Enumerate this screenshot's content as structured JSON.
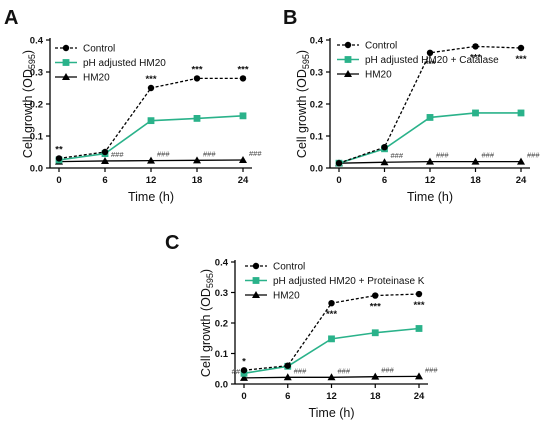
{
  "chart_data": [
    {
      "panel": "A",
      "type": "line",
      "xlabel": "Time (h)",
      "ylabel": "Cell growth (OD595)",
      "ylabel_main": "Cell growth (OD",
      "ylabel_sub": "595",
      "ylabel_close": ")",
      "x": [
        0,
        6,
        12,
        18,
        24
      ],
      "x_ticks": [
        "0",
        "6",
        "12",
        "18",
        "24"
      ],
      "ylim": [
        0,
        0.4
      ],
      "y_ticks": [
        "0.0",
        "0.1",
        "0.2",
        "0.3",
        "0.4"
      ],
      "y_tick_values": [
        0,
        0.1,
        0.2,
        0.3,
        0.4
      ],
      "series": [
        {
          "name": "Control",
          "values": [
            0.03,
            0.05,
            0.25,
            0.28,
            0.28
          ],
          "marker": "circle",
          "style": "dashed",
          "color": "#000000"
        },
        {
          "name": "pH adjusted HM20",
          "values": [
            0.025,
            0.045,
            0.148,
            0.155,
            0.163
          ],
          "marker": "square",
          "style": "solid",
          "color": "#2ab28a"
        },
        {
          "name": "HM20",
          "values": [
            0.02,
            0.022,
            0.023,
            0.024,
            0.025
          ],
          "marker": "triangle",
          "style": "solid",
          "color": "#000000"
        }
      ],
      "star_annotations": [
        {
          "x": 0,
          "text": "**",
          "value": 0.03,
          "position": "above"
        },
        {
          "x": 12,
          "text": "***",
          "value": 0.25,
          "position": "above"
        },
        {
          "x": 18,
          "text": "***",
          "value": 0.28,
          "position": "above"
        },
        {
          "x": 24,
          "text": "***",
          "value": 0.28,
          "position": "above"
        }
      ],
      "hash_annotations": [
        {
          "x": 6,
          "text": "###"
        },
        {
          "x": 12,
          "text": "###"
        },
        {
          "x": 18,
          "text": "###"
        },
        {
          "x": 24,
          "text": "###"
        }
      ]
    },
    {
      "panel": "B",
      "type": "line",
      "xlabel": "Time (h)",
      "ylabel": "Cell growth (OD595)",
      "ylabel_main": "Cell growth (OD",
      "ylabel_sub": "595",
      "ylabel_close": ")",
      "x": [
        0,
        6,
        12,
        18,
        24
      ],
      "x_ticks": [
        "0",
        "6",
        "12",
        "18",
        "24"
      ],
      "ylim": [
        0,
        0.4
      ],
      "y_ticks": [
        "0.0",
        "0.1",
        "0.2",
        "0.3",
        "0.4"
      ],
      "y_tick_values": [
        0,
        0.1,
        0.2,
        0.3,
        0.4
      ],
      "series": [
        {
          "name": "Control",
          "values": [
            0.015,
            0.065,
            0.36,
            0.38,
            0.375
          ],
          "marker": "circle",
          "style": "dashed",
          "color": "#000000"
        },
        {
          "name": "pH adjusted HM20 + Catalase",
          "values": [
            0.015,
            0.06,
            0.158,
            0.172,
            0.172
          ],
          "marker": "square",
          "style": "solid",
          "color": "#2ab28a"
        },
        {
          "name": "HM20",
          "values": [
            0.015,
            0.018,
            0.02,
            0.02,
            0.02
          ],
          "marker": "triangle",
          "style": "solid",
          "color": "#000000"
        }
      ],
      "star_annotations": [
        {
          "x": 12,
          "text": "***",
          "value": 0.36,
          "position": "below"
        },
        {
          "x": 18,
          "text": "***",
          "value": 0.38,
          "position": "below"
        },
        {
          "x": 24,
          "text": "***",
          "value": 0.375,
          "position": "below"
        }
      ],
      "hash_annotations": [
        {
          "x": 6,
          "text": "###"
        },
        {
          "x": 12,
          "text": "###"
        },
        {
          "x": 18,
          "text": "###"
        },
        {
          "x": 24,
          "text": "###"
        }
      ]
    },
    {
      "panel": "C",
      "type": "line",
      "xlabel": "Time (h)",
      "ylabel": "Cell growth (OD595)",
      "ylabel_main": "Cell growth (OD",
      "ylabel_sub": "595",
      "ylabel_close": ")",
      "x": [
        0,
        6,
        12,
        18,
        24
      ],
      "x_ticks": [
        "0",
        "6",
        "12",
        "18",
        "24"
      ],
      "ylim": [
        0,
        0.4
      ],
      "y_ticks": [
        "0.0",
        "0.1",
        "0.2",
        "0.3",
        "0.4"
      ],
      "y_tick_values": [
        0,
        0.1,
        0.2,
        0.3,
        0.4
      ],
      "series": [
        {
          "name": "Control",
          "values": [
            0.045,
            0.06,
            0.265,
            0.29,
            0.295
          ],
          "marker": "circle",
          "style": "dashed",
          "color": "#000000"
        },
        {
          "name": "pH adjusted HM20 + Proteinase K",
          "values": [
            0.035,
            0.058,
            0.148,
            0.168,
            0.182
          ],
          "marker": "square",
          "style": "solid",
          "color": "#2ab28a"
        },
        {
          "name": "HM20",
          "values": [
            0.02,
            0.022,
            0.022,
            0.024,
            0.025
          ],
          "marker": "triangle",
          "style": "solid",
          "color": "#000000"
        }
      ],
      "star_annotations": [
        {
          "x": 0,
          "text": "*",
          "value": 0.045,
          "position": "above"
        },
        {
          "x": 12,
          "text": "***",
          "value": 0.265,
          "position": "below"
        },
        {
          "x": 18,
          "text": "***",
          "value": 0.29,
          "position": "below"
        },
        {
          "x": 24,
          "text": "***",
          "value": 0.295,
          "position": "below"
        }
      ],
      "hash_annotations": [
        {
          "x": 0,
          "text": "##"
        },
        {
          "x": 6,
          "text": "###"
        },
        {
          "x": 12,
          "text": "###"
        },
        {
          "x": 18,
          "text": "###"
        },
        {
          "x": 24,
          "text": "###"
        }
      ]
    }
  ]
}
